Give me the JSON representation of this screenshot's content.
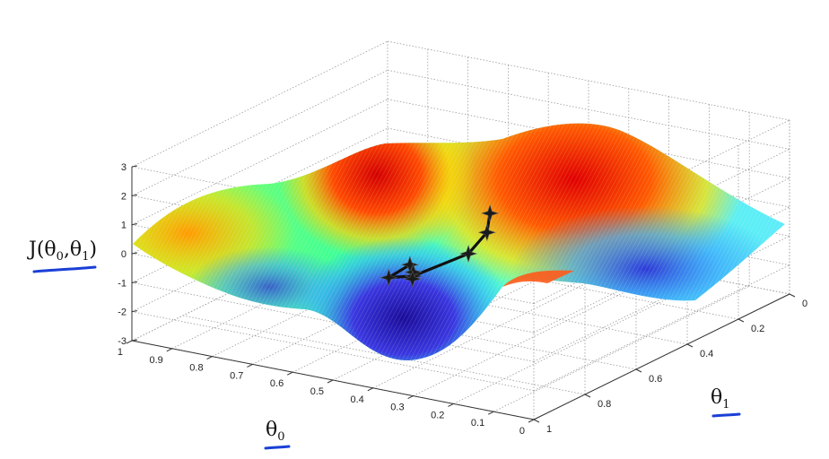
{
  "chart_data": {
    "type": "surface",
    "title": "",
    "zlabel": "J(θ0,θ1)",
    "xlabel": "θ0",
    "ylabel": "θ1",
    "zlabel_parts": {
      "prefix": "J(θ",
      "sub1": "0",
      "mid": ",θ",
      "sub2": "1",
      "suffix": ")"
    },
    "xlabel_parts": {
      "main": "θ",
      "sub": "0"
    },
    "ylabel_parts": {
      "main": "θ",
      "sub": "1"
    },
    "xlim": [
      0,
      1
    ],
    "ylim": [
      0,
      1
    ],
    "zlim": [
      -3,
      3
    ],
    "x_ticks": [
      "1",
      "0.9",
      "0.8",
      "0.7",
      "0.6",
      "0.5",
      "0.4",
      "0.3",
      "0.2",
      "0.1",
      "0"
    ],
    "y_ticks": [
      "0",
      "0.2",
      "0.4",
      "0.6",
      "0.8",
      "1"
    ],
    "z_ticks": [
      "3",
      "2",
      "1",
      "0",
      "-1",
      "-2",
      "-3"
    ],
    "grid": true,
    "colormap": "jet",
    "label_underline_color": "#1a3fd6",
    "descent_path": [
      {
        "x": 0.3,
        "y": 0.3,
        "z": 2.0
      },
      {
        "x": 0.32,
        "y": 0.32,
        "z": 1.2
      },
      {
        "x": 0.36,
        "y": 0.31,
        "z": 0.4
      },
      {
        "x": 0.44,
        "y": 0.22,
        "z": -0.2
      },
      {
        "x": 0.52,
        "y": 0.25,
        "z": -0.6
      },
      {
        "x": 0.55,
        "y": 0.38,
        "z": -0.8
      },
      {
        "x": 0.58,
        "y": 0.44,
        "z": -1.4
      },
      {
        "x": 0.62,
        "y": 0.5,
        "z": -2.0
      }
    ]
  }
}
